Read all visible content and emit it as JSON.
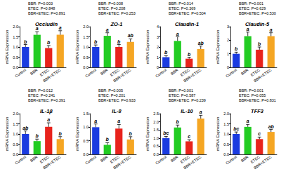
{
  "chart_data": [
    {
      "type": "bar",
      "title": "Occludin",
      "y_label": "mRNA Expression",
      "categories": [
        "Control",
        "BBR",
        "ETEC",
        "BBR+ETEC"
      ],
      "values": [
        1.0,
        1.6,
        0.95,
        1.6
      ],
      "errors": [
        0.12,
        0.15,
        0.12,
        0.2
      ],
      "letters": [
        "b",
        "a",
        "b",
        "a"
      ],
      "colors": [
        "#1a3be0",
        "#22cc22",
        "#e8231c",
        "#f5a623"
      ],
      "annotations": [
        "BBR: P=0.003",
        "ETEC: P=0.848",
        "BBR×ETEC: P=0.891"
      ],
      "ylim": [
        0,
        2
      ],
      "yticks": [
        {
          "value": 0,
          "label": "0.0"
        },
        0.5,
        {
          "value": 1,
          "label": "1.0"
        },
        1.5,
        {
          "value": 2,
          "label": "2.0"
        }
      ]
    },
    {
      "type": "bar",
      "title": "ZO-1",
      "y_label": "mRNA Expression",
      "categories": [
        "Control",
        "BBR",
        "ETEC",
        "BBR+ETEC"
      ],
      "values": [
        1.0,
        1.55,
        1.0,
        1.25
      ],
      "errors": [
        0.1,
        0.15,
        0.12,
        0.15
      ],
      "letters": [
        "b",
        "a",
        "b",
        "ab"
      ],
      "colors": [
        "#1a3be0",
        "#22cc22",
        "#e8231c",
        "#f5a623"
      ],
      "annotations": [
        "BBR: P=0.008",
        "ETEC: P=0.208",
        "BBR×ETEC: P=0.253"
      ],
      "ylim": [
        0,
        2
      ],
      "yticks": [
        {
          "value": 0,
          "label": "0.0"
        },
        0.5,
        {
          "value": 1,
          "label": "1.0"
        },
        1.5,
        {
          "value": 2,
          "label": "2.0"
        }
      ]
    },
    {
      "type": "bar",
      "title": "Claudin-1",
      "y_label": "mRNA Expression",
      "categories": [
        "Control",
        "BBR",
        "ETEC",
        "BBR+ETEC"
      ],
      "values": [
        1.0,
        2.6,
        0.85,
        1.8
      ],
      "errors": [
        0.15,
        0.4,
        0.15,
        0.3
      ],
      "letters": [
        "b",
        "a",
        "b",
        "ab"
      ],
      "colors": [
        "#1a3be0",
        "#22cc22",
        "#e8231c",
        "#f5a623"
      ],
      "annotations": [
        "BBR: P=0.014",
        "ETEC: P=0.369",
        "BBR×ETEC: P=0.504"
      ],
      "ylim": [
        0,
        4
      ],
      "yticks": [
        0,
        1,
        2,
        3,
        4
      ]
    },
    {
      "type": "bar",
      "title": "Claudin-5",
      "y_label": "mRNA Expression",
      "categories": [
        "Control",
        "BBR",
        "ETEC",
        "BBR+ETEC"
      ],
      "values": [
        1.0,
        2.3,
        1.3,
        2.3
      ],
      "errors": [
        0.12,
        0.3,
        0.2,
        0.25
      ],
      "letters": [
        "b",
        "a",
        "b",
        "a"
      ],
      "colors": [
        "#1a3be0",
        "#22cc22",
        "#e8231c",
        "#f5a623"
      ],
      "annotations": [
        "BBR: P=0.001",
        "ETEC: P=0.629",
        "BBR×ETEC: P=0.530"
      ],
      "ylim": [
        0,
        3
      ],
      "yticks": [
        0,
        1,
        2,
        3
      ]
    },
    {
      "type": "bar",
      "title": "IL-1β",
      "y_label": "mRNA Expression",
      "categories": [
        "Control",
        "BBR",
        "ETEC",
        "BBR+ETEC"
      ],
      "values": [
        1.0,
        0.65,
        1.35,
        0.75
      ],
      "errors": [
        0.15,
        0.1,
        0.2,
        0.12
      ],
      "letters": [
        "ab",
        "b",
        "a",
        "b"
      ],
      "colors": [
        "#1a3be0",
        "#22cc22",
        "#e8231c",
        "#f5a623"
      ],
      "annotations": [
        "BBR: P=0.012",
        "ETEC: P=0.241",
        "BBR×ETEC: P=0.391"
      ],
      "ylim": [
        0,
        2
      ],
      "yticks": [
        {
          "value": 0,
          "label": "0.0"
        },
        0.5,
        {
          "value": 1,
          "label": "1.0"
        },
        1.5,
        {
          "value": 2,
          "label": "2.0"
        }
      ]
    },
    {
      "type": "bar",
      "title": "IL-8",
      "y_label": "mRNA Expression",
      "categories": [
        "Control",
        "BBR",
        "ETEC",
        "BBR+ETEC"
      ],
      "values": [
        1.0,
        0.35,
        0.95,
        0.55
      ],
      "errors": [
        0.12,
        0.08,
        0.15,
        0.1
      ],
      "letters": [
        "a",
        "b",
        "a",
        "b"
      ],
      "colors": [
        "#1a3be0",
        "#22cc22",
        "#e8231c",
        "#f5a623"
      ],
      "annotations": [
        "BBR: P=0.005",
        "ETEC: P=0.201",
        "BBR×ETEC: P=0.933"
      ],
      "ylim": [
        0,
        1.5
      ],
      "yticks": [
        {
          "value": 0,
          "label": "0.0"
        },
        0.5,
        {
          "value": 1,
          "label": "1.0"
        },
        1.5
      ]
    },
    {
      "type": "bar",
      "title": "IL-10",
      "y_label": "mRNA Expression",
      "categories": [
        "Control",
        "BBR",
        "ETEC",
        "BBR+ETEC"
      ],
      "values": [
        1.0,
        1.65,
        0.8,
        2.2
      ],
      "errors": [
        0.1,
        0.15,
        0.1,
        0.2
      ],
      "letters": [
        "bc",
        "b",
        "c",
        "a"
      ],
      "colors": [
        "#1a3be0",
        "#22cc22",
        "#e8231c",
        "#f5a623"
      ],
      "annotations": [
        "BBR: P=0.001",
        "ETEC: P=0.587",
        "BBR×ETEC: P=0.239"
      ],
      "ylim": [
        0,
        2.5
      ],
      "yticks": [
        {
          "value": 0,
          "label": "0.0"
        },
        0.5,
        {
          "value": 1,
          "label": "1.0"
        },
        1.5,
        {
          "value": 2,
          "label": "2.0"
        },
        2.5
      ]
    },
    {
      "type": "bar",
      "title": "TFF3",
      "y_label": "mRNA Expression",
      "categories": [
        "Control",
        "BBR",
        "ETEC",
        "BBR+ETEC"
      ],
      "values": [
        1.0,
        1.35,
        0.75,
        1.1
      ],
      "errors": [
        0.1,
        0.12,
        0.1,
        0.12
      ],
      "letters": [
        "bc",
        "a",
        "c",
        "ab"
      ],
      "colors": [
        "#1a3be0",
        "#22cc22",
        "#e8231c",
        "#f5a623"
      ],
      "annotations": [
        "BBR: P=0.001",
        "ETEC: P=0.055",
        "BBR×ETEC: P=0.831"
      ],
      "ylim": [
        0,
        2
      ],
      "yticks": [
        {
          "value": 0,
          "label": "0.0"
        },
        0.5,
        {
          "value": 1,
          "label": "1.0"
        },
        1.5,
        {
          "value": 2,
          "label": "2.0"
        }
      ]
    }
  ]
}
